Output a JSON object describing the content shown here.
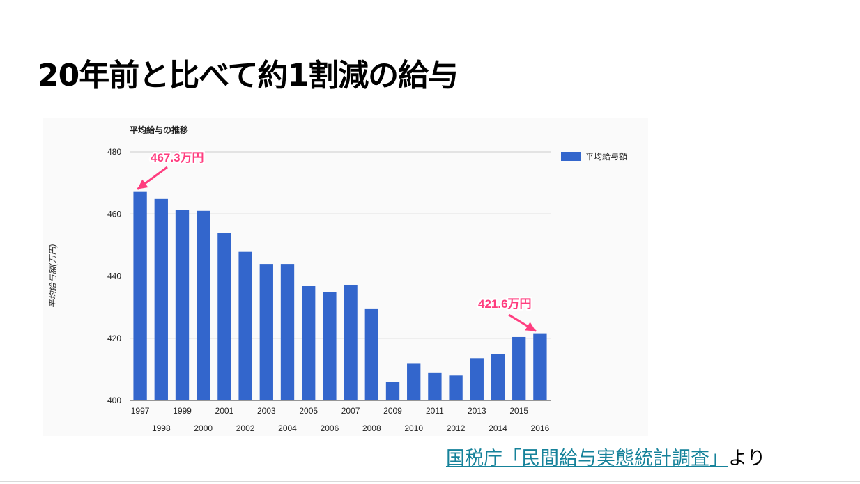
{
  "slide": {
    "title": "20年前と比べて約1割減の給与",
    "source_link_text": "国税庁「民間給与実態統計調査」",
    "source_suffix": "より"
  },
  "chart_data": {
    "type": "bar",
    "title": "平均給与の推移",
    "xlabel": "",
    "ylabel": "平均給与額(万円)",
    "categories": [
      "1997",
      "1998",
      "1999",
      "2000",
      "2001",
      "2002",
      "2003",
      "2004",
      "2005",
      "2006",
      "2007",
      "2008",
      "2009",
      "2010",
      "2011",
      "2012",
      "2013",
      "2014",
      "2015",
      "2016"
    ],
    "series": [
      {
        "name": "平均給与額",
        "color": "#3366cc",
        "values": [
          467.3,
          464.8,
          461.3,
          461.0,
          454.0,
          447.8,
          443.9,
          443.9,
          436.8,
          434.9,
          437.2,
          429.6,
          405.9,
          412.0,
          409.0,
          408.0,
          413.6,
          415.0,
          420.4,
          421.6
        ]
      }
    ],
    "ylim": [
      400,
      480
    ],
    "yticks": [
      400,
      420,
      440,
      460,
      480
    ],
    "grid": true,
    "legend_position": "right",
    "annotations": [
      {
        "category": "1997",
        "text": "467.3万円",
        "color": "#ff3d7f"
      },
      {
        "category": "2016",
        "text": "421.6万円",
        "color": "#ff3d7f"
      }
    ]
  }
}
